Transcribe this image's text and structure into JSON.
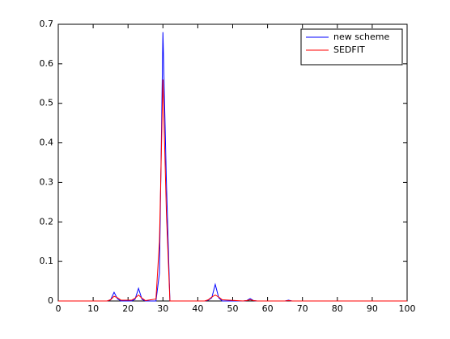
{
  "chart_data": {
    "type": "line",
    "x": [
      0,
      14,
      15,
      16,
      17,
      18,
      21,
      22,
      23,
      24,
      25,
      28,
      29,
      30,
      31,
      32,
      42,
      43,
      44,
      45,
      46,
      47,
      53,
      54,
      55,
      56,
      57,
      65,
      66,
      67,
      100
    ],
    "series": [
      {
        "name": "new scheme",
        "color": "#0000ff",
        "values": [
          0,
          0,
          0.003,
          0.022,
          0.005,
          0,
          0,
          0.004,
          0.032,
          0.004,
          0,
          0,
          0.07,
          0.68,
          0.3,
          0,
          0,
          0.002,
          0.008,
          0.042,
          0.008,
          0,
          0,
          0.001,
          0.006,
          0.001,
          0,
          0,
          0.002,
          0,
          0
        ]
      },
      {
        "name": "SEDFIT",
        "color": "#ff0000",
        "values": [
          0,
          0,
          0.003,
          0.012,
          0.008,
          0.002,
          0.002,
          0.007,
          0.015,
          0.007,
          0.001,
          0.005,
          0.15,
          0.56,
          0.22,
          0,
          0,
          0.003,
          0.01,
          0.015,
          0.01,
          0.003,
          0,
          0.001,
          0.003,
          0.001,
          0,
          0,
          0.001,
          0,
          0
        ]
      }
    ],
    "xlim": [
      0,
      100
    ],
    "xticks": [
      0,
      10,
      20,
      30,
      40,
      50,
      60,
      70,
      80,
      90,
      100
    ],
    "ylim": [
      0,
      0.7
    ],
    "yticks": [
      0,
      0.1,
      0.2,
      0.3,
      0.4,
      0.5,
      0.6,
      0.7
    ],
    "grid": false,
    "legend": "top-right"
  }
}
